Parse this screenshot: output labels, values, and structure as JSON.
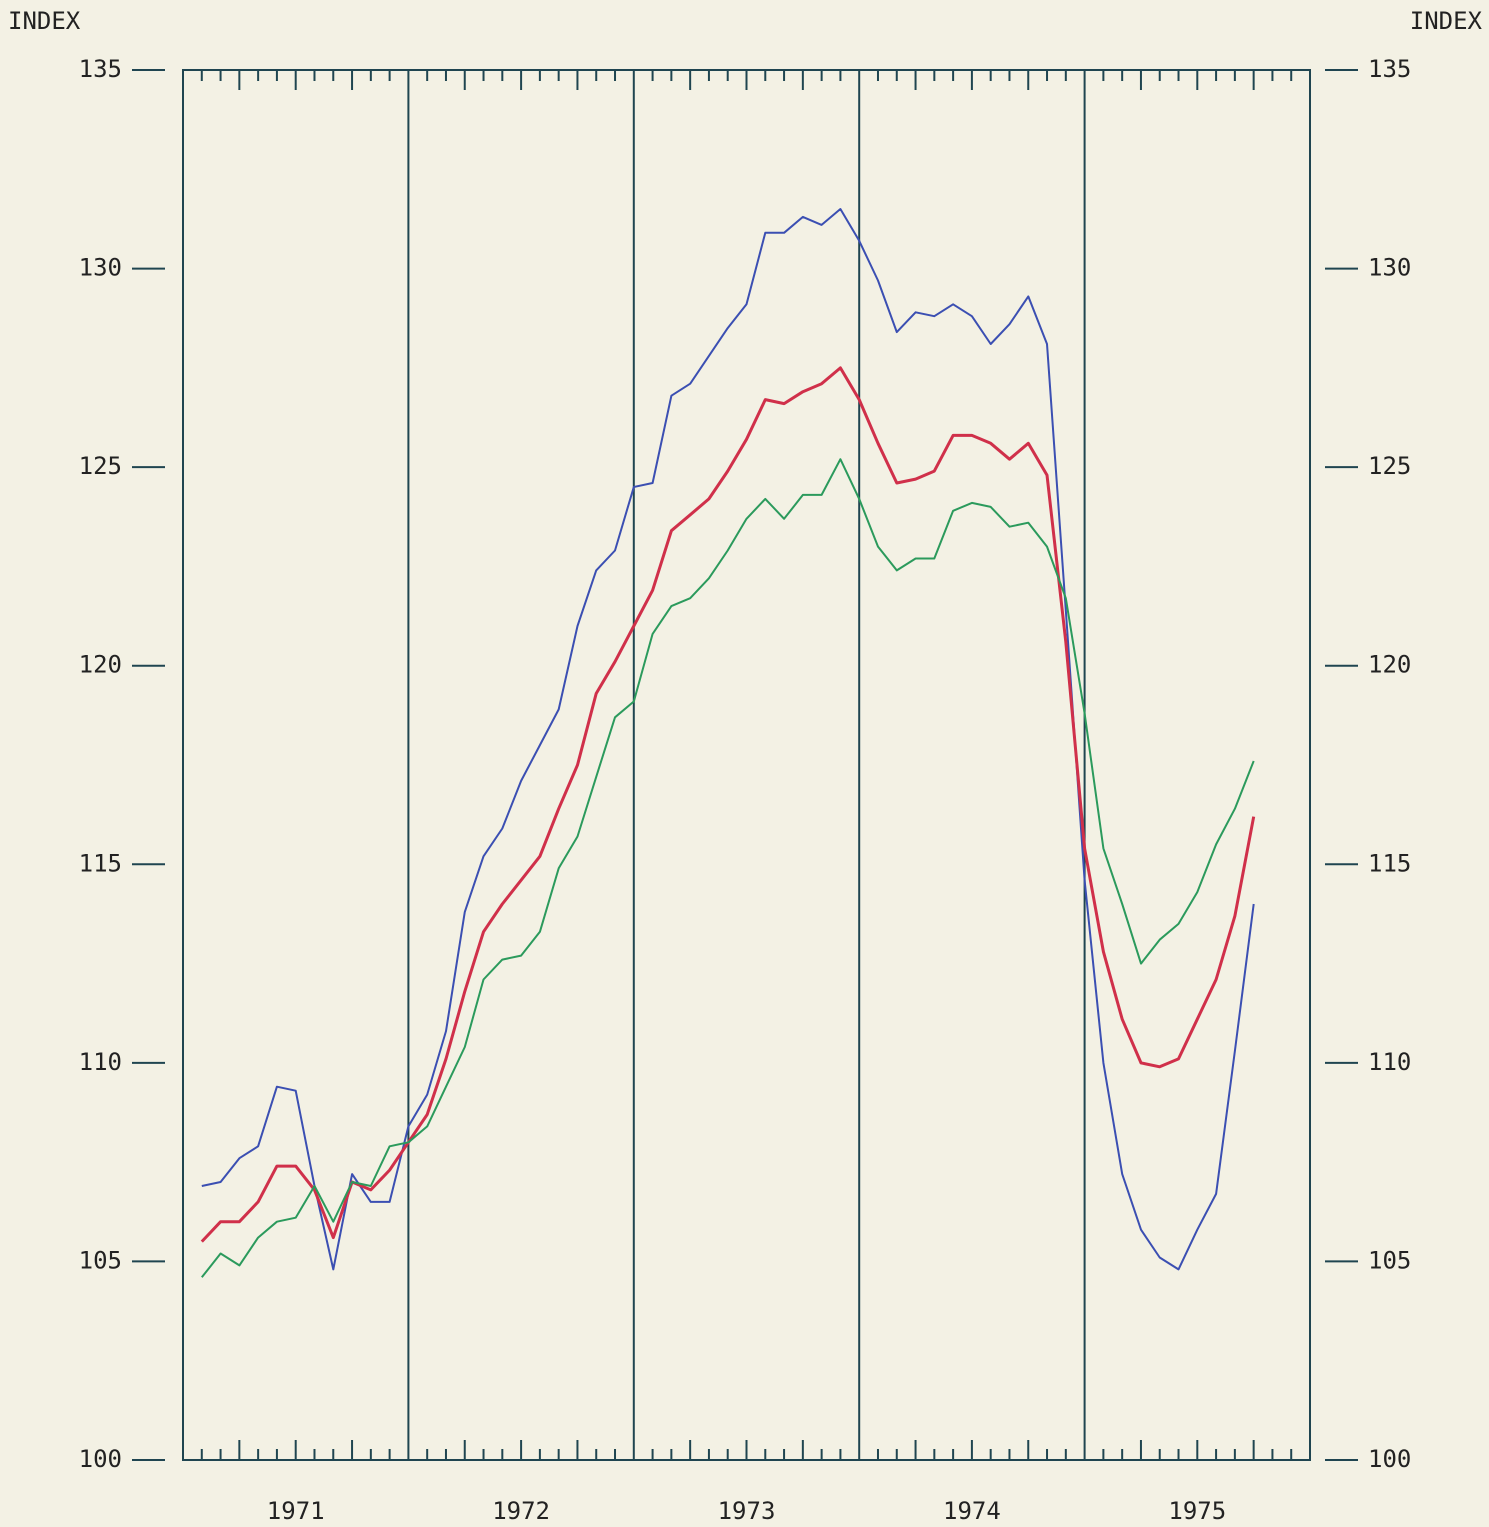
{
  "chart_data": {
    "type": "line",
    "y_label": "INDEX",
    "y2_label": "INDEX",
    "categories": [
      null,
      null,
      null,
      null,
      null,
      null,
      "1971",
      null,
      null,
      null,
      null,
      null,
      null,
      null,
      null,
      null,
      null,
      null,
      "1972",
      null,
      null,
      null,
      null,
      null,
      null,
      null,
      null,
      null,
      null,
      null,
      "1973",
      null,
      null,
      null,
      null,
      null,
      null,
      null,
      null,
      null,
      null,
      null,
      "1974",
      null,
      null,
      null,
      null,
      null,
      null,
      null,
      null,
      null,
      null,
      null,
      "1975",
      null,
      null,
      null,
      null,
      null
    ],
    "series": [
      {
        "color": "#3b4fb2",
        "values": [
          null,
          106.9,
          107.0,
          107.6,
          107.9,
          109.4,
          109.3,
          106.9,
          104.8,
          107.2,
          106.5,
          106.5,
          108.4,
          109.2,
          110.8,
          113.8,
          115.2,
          115.9,
          117.1,
          118.0,
          118.9,
          121.0,
          122.4,
          122.9,
          124.5,
          124.6,
          126.8,
          127.1,
          127.8,
          128.5,
          129.1,
          130.9,
          130.9,
          131.3,
          131.1,
          131.5,
          130.7,
          129.7,
          128.4,
          128.9,
          128.8,
          129.1,
          128.8,
          128.1,
          128.6,
          129.3,
          128.1,
          121.4,
          114.6,
          110.0,
          107.2,
          105.8,
          105.1,
          104.8,
          105.8,
          106.7,
          110.3,
          114.0,
          null,
          null
        ]
      },
      {
        "color": "#d0304a",
        "values": [
          null,
          105.5,
          106.0,
          106.0,
          106.5,
          107.4,
          107.4,
          106.8,
          105.6,
          107.0,
          106.8,
          107.3,
          108.0,
          108.7,
          110.1,
          111.8,
          113.3,
          114.0,
          114.6,
          115.2,
          116.4,
          117.5,
          119.3,
          120.1,
          121.0,
          121.9,
          123.4,
          123.8,
          124.2,
          124.9,
          125.7,
          126.7,
          126.6,
          126.9,
          127.1,
          127.5,
          126.7,
          125.6,
          124.6,
          124.7,
          124.9,
          125.8,
          125.8,
          125.6,
          125.2,
          125.6,
          124.8,
          120.6,
          115.4,
          112.8,
          111.1,
          110.0,
          109.9,
          110.1,
          111.1,
          112.1,
          113.7,
          116.2,
          null,
          null
        ]
      },
      {
        "color": "#2b9a5c",
        "values": [
          null,
          104.6,
          105.2,
          104.9,
          105.6,
          106.0,
          106.1,
          106.9,
          106.0,
          107.0,
          106.9,
          107.9,
          108.0,
          108.4,
          109.4,
          110.4,
          112.1,
          112.6,
          112.7,
          113.3,
          114.9,
          115.7,
          117.2,
          118.7,
          119.1,
          120.8,
          121.5,
          121.7,
          122.2,
          122.9,
          123.7,
          124.2,
          123.7,
          124.3,
          124.3,
          125.2,
          124.2,
          123.0,
          122.4,
          122.7,
          122.7,
          123.9,
          124.1,
          124.0,
          123.5,
          123.6,
          123.0,
          121.7,
          118.8,
          115.4,
          114.0,
          112.5,
          113.1,
          113.5,
          114.3,
          115.5,
          116.4,
          117.6,
          null,
          null
        ]
      }
    ],
    "ylim": [
      100,
      135
    ],
    "yticks": [
      100,
      105,
      110,
      115,
      120,
      125,
      130,
      135
    ],
    "y2lim": [
      100,
      135
    ],
    "y2ticks": [
      100,
      105,
      110,
      115,
      120,
      125,
      130,
      135
    ]
  }
}
